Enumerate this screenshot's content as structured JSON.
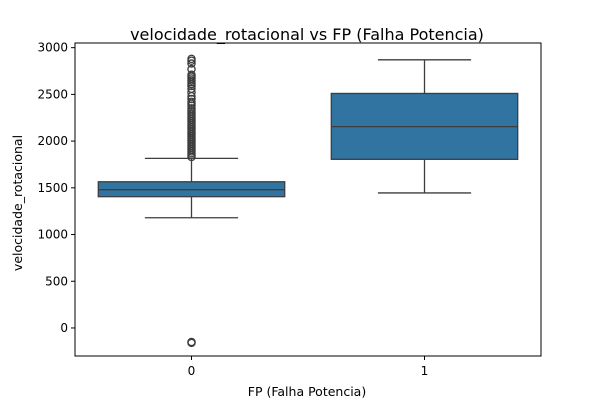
{
  "chart_data": {
    "type": "box",
    "title": "velocidade_rotacional vs FP (Falha Potencia)",
    "xlabel": "FP (Falha Potencia)",
    "ylabel": "velocidade_rotacional",
    "categories": [
      "0",
      "1"
    ],
    "ylim": [
      -300,
      3050
    ],
    "yticks": [
      0,
      500,
      1000,
      1500,
      2000,
      2500,
      3000
    ],
    "box_color": "#3274a1",
    "line_color": "#3d3d3d",
    "boxes": [
      {
        "category": "0",
        "whisker_low": 1180,
        "q1": 1405,
        "median": 1480,
        "q3": 1565,
        "whisker_high": 1815,
        "outliers": [
          -160,
          -150,
          1830,
          1850,
          1870,
          1890,
          1910,
          1930,
          1950,
          1970,
          1990,
          2010,
          2030,
          2050,
          2070,
          2090,
          2110,
          2130,
          2150,
          2170,
          2190,
          2210,
          2230,
          2250,
          2270,
          2290,
          2310,
          2330,
          2350,
          2380,
          2400,
          2420,
          2450,
          2480,
          2520,
          2560,
          2590,
          2610,
          2630,
          2650,
          2670,
          2690,
          2710,
          2770,
          2830,
          2860,
          2880
        ]
      },
      {
        "category": "1",
        "whisker_low": 1445,
        "q1": 1805,
        "median": 2155,
        "q3": 2510,
        "whisker_high": 2870,
        "outliers": []
      }
    ]
  }
}
